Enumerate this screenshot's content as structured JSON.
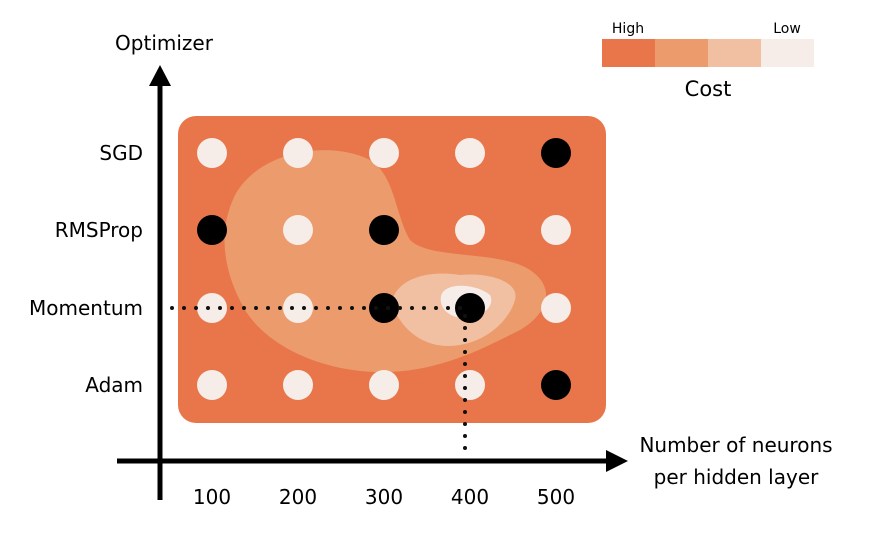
{
  "y_axis_title": "Optimizer",
  "x_axis_title_line1": "Number of neurons",
  "x_axis_title_line2": "per hidden layer",
  "legend": {
    "title": "Cost",
    "high_label": "High",
    "low_label": "Low",
    "colors": [
      "#e8764a",
      "#ec9b6c",
      "#f1bfa1",
      "#f6ede8"
    ]
  },
  "colors": {
    "panel": "#e8764a",
    "region_mid": "#ec9b6c",
    "region_light": "#f1bfa1",
    "region_lightest": "#f6ede8",
    "dot_untried": "#f6ede8",
    "dot_tried": "#000000"
  },
  "chart_data": {
    "type": "grid",
    "x": [
      100,
      200,
      300,
      400,
      500
    ],
    "y_categories": [
      "SGD",
      "RMSProp",
      "Momentum",
      "Adam"
    ],
    "selected_points": [
      {
        "x": 500,
        "y": "SGD"
      },
      {
        "x": 100,
        "y": "RMSProp"
      },
      {
        "x": 300,
        "y": "RMSProp"
      },
      {
        "x": 300,
        "y": "Momentum"
      },
      {
        "x": 400,
        "y": "Momentum"
      },
      {
        "x": 500,
        "y": "Adam"
      }
    ],
    "highlighted_point": {
      "x": 400,
      "y": "Momentum"
    }
  }
}
